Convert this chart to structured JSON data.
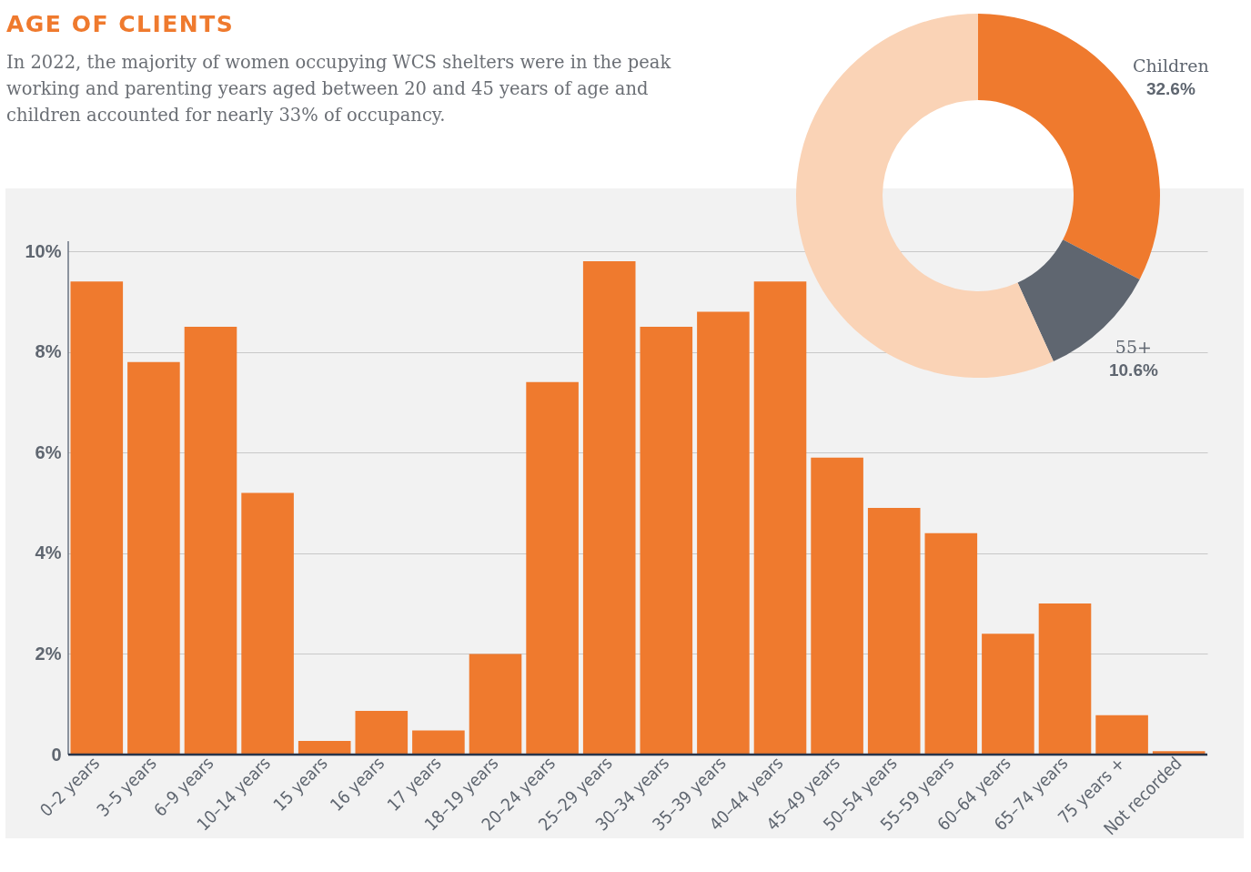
{
  "chart_data": [
    {
      "type": "bar",
      "title": "AGE OF CLIENTS",
      "subtitle": "In 2022, the majority of women occupying WCS shelters were in the peak working and parenting years aged between 20 and 45 years of age and children accounted for nearly 33% of occupancy.",
      "categories": [
        "0–2 years",
        "3–5 years",
        "6–9 years",
        "10–14 years",
        "15 years",
        "16 years",
        "17 years",
        "18–19 years",
        "20–24 years",
        "25–29 years",
        "30–34 years",
        "35–39 years",
        "40–44 years",
        "45–49 years",
        "50–54 years",
        "55–59 years",
        "60–64 years",
        "65–74 years",
        "75 years +",
        "Not recorded"
      ],
      "values": [
        9.4,
        7.8,
        8.5,
        5.2,
        0.27,
        0.87,
        0.48,
        2.0,
        7.4,
        9.8,
        8.5,
        8.8,
        9.4,
        5.9,
        4.9,
        4.4,
        2.4,
        3.0,
        0.78,
        0.07
      ],
      "color": "#ef7a2e",
      "ylim": [
        0,
        10.2
      ],
      "yticks": [
        {
          "value": 0,
          "label": "0"
        },
        {
          "value": 2,
          "label": "2%"
        },
        {
          "value": 4,
          "label": "4%"
        },
        {
          "value": 6,
          "label": "6%"
        },
        {
          "value": 8,
          "label": "8%"
        },
        {
          "value": 10,
          "label": "10%"
        }
      ],
      "grid": "y"
    },
    {
      "type": "donut",
      "categories": [
        "Children",
        "55+",
        null
      ],
      "values": [
        32.6,
        10.6,
        56.8
      ],
      "colors": [
        "#ef7a2e",
        "#5f6670",
        "#fad3b6"
      ],
      "value_labels": [
        "32.6%",
        "10.6%",
        null
      ]
    }
  ]
}
